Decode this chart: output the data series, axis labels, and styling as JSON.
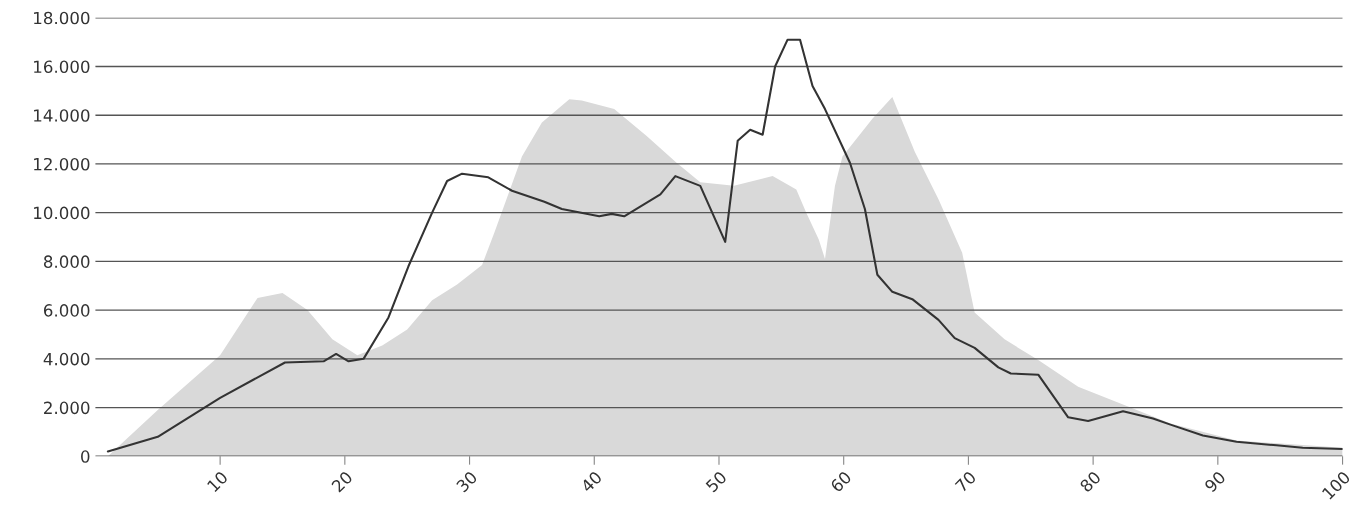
{
  "chart_data": {
    "type": "area",
    "series": [
      {
        "color": "#d9d9d9",
        "x": [
          1,
          5,
          10,
          13,
          15,
          17,
          19,
          21,
          23,
          25,
          27,
          29,
          31,
          32,
          34.2,
          35.8,
          38,
          39,
          41.6,
          44.2,
          46.6,
          48.5,
          51.2,
          54.3,
          56.2,
          57,
          58,
          58.5,
          59.3,
          59.9,
          62.3,
          63.9,
          65.7,
          67.6,
          69.5,
          70.5,
          72.9,
          75.6,
          78.8,
          83,
          86.2,
          91.5,
          100
        ],
        "values": [
          0,
          1900,
          4150,
          6500,
          6700,
          6000,
          4800,
          4150,
          4550,
          5200,
          6400,
          7050,
          7850,
          9200,
          12300,
          13700,
          14650,
          14600,
          14250,
          13150,
          12050,
          11250,
          11100,
          11500,
          10950,
          10000,
          8900,
          8100,
          11100,
          12300,
          13850,
          14750,
          12500,
          10550,
          8350,
          5900,
          4800,
          3950,
          2850,
          2000,
          1350,
          650,
          350
        ]
      },
      {
        "type": "line",
        "color": "#333333",
        "x": [
          1,
          5,
          10,
          15.2,
          18.3,
          19.3,
          20.3,
          21.5,
          23.5,
          25.1,
          27,
          28.2,
          29.4,
          31.5,
          33.4,
          36,
          37.4,
          40.4,
          41.4,
          42.4,
          45.3,
          46.5,
          48.5,
          50.5,
          51.5,
          52.5,
          53.5,
          54.5,
          55.5,
          56.5,
          57.5,
          58.5,
          60.5,
          61.7,
          62.7,
          63.9,
          65.5,
          67.6,
          68.9,
          70.5,
          72.4,
          73.4,
          75.6,
          78,
          79.6,
          82.4,
          84.8,
          86.2,
          88.8,
          91.5,
          94.7,
          96.8,
          100
        ],
        "values": [
          200,
          800,
          2400,
          3850,
          3900,
          4200,
          3900,
          4000,
          5700,
          7800,
          10000,
          11300,
          11600,
          11450,
          10900,
          10450,
          10150,
          9850,
          9950,
          9850,
          10750,
          11500,
          11100,
          8800,
          12950,
          13400,
          13200,
          16000,
          17100,
          17100,
          15200,
          14250,
          12050,
          10150,
          7450,
          6750,
          6450,
          5600,
          4850,
          4450,
          3650,
          3400,
          3350,
          1600,
          1450,
          1850,
          1550,
          1300,
          850,
          600,
          450,
          350,
          300
        ]
      }
    ],
    "xlim": [
      0,
      100
    ],
    "xticks": [
      10,
      20,
      30,
      40,
      50,
      60,
      70,
      80,
      90,
      100
    ],
    "ylim": [
      0,
      18000
    ],
    "yticks": [
      0,
      {
        "value": 2000,
        "label": "2.000"
      },
      {
        "value": 4000,
        "label": "4.000"
      },
      {
        "value": 6000,
        "label": "6.000"
      },
      {
        "value": 8000,
        "label": "8.000"
      },
      {
        "value": 10000,
        "label": "10.000"
      },
      {
        "value": 12000,
        "label": "12.000"
      },
      {
        "value": 14000,
        "label": "14.000"
      },
      {
        "value": 16000,
        "label": "16.000"
      },
      {
        "value": 18000,
        "label": "18.000"
      }
    ],
    "grid": "y"
  }
}
